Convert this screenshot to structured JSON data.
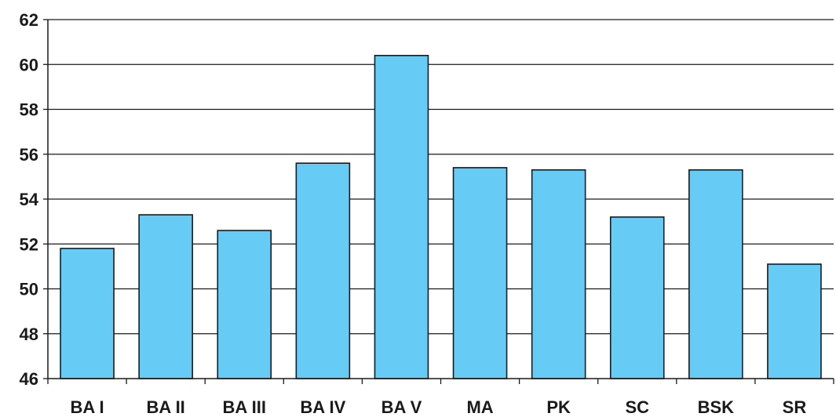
{
  "chart_data": {
    "type": "bar",
    "categories": [
      "BA I",
      "BA II",
      "BA III",
      "BA IV",
      "BA V",
      "MA",
      "PK",
      "SC",
      "BSK",
      "SR"
    ],
    "values": [
      51.8,
      53.3,
      52.6,
      55.6,
      60.4,
      55.4,
      55.3,
      53.2,
      55.3,
      51.1
    ],
    "title": "",
    "xlabel": "",
    "ylabel": "",
    "ylim": [
      46,
      62
    ],
    "yticks": [
      46,
      48,
      50,
      52,
      54,
      56,
      58,
      60,
      62
    ],
    "grid": true,
    "legend": "none",
    "colors": {
      "bar_fill": "#66ccf5",
      "bar_stroke": "#1a1a1a",
      "grid": "#1a1a1a",
      "axis": "#1a1a1a",
      "text": "#1a1a1a"
    }
  }
}
